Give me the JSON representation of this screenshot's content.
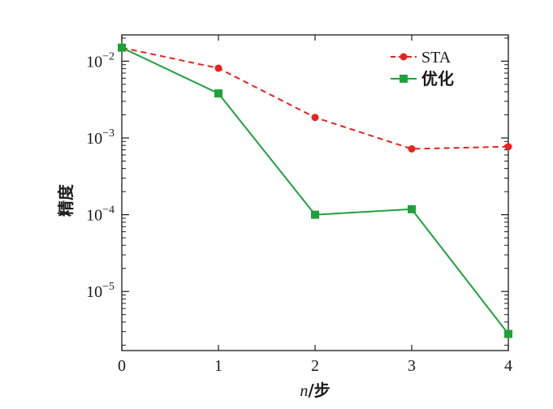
{
  "chart_data": {
    "type": "line",
    "x": [
      0,
      1,
      2,
      3,
      4
    ],
    "xlabel_italic": "n",
    "xlabel_rest": "/步",
    "ylabel": "精度",
    "yscale": "log",
    "xlim": [
      0,
      4
    ],
    "ylim": [
      1.7e-06,
      0.022
    ],
    "x_ticks": [
      "0",
      "1",
      "2",
      "3",
      "4"
    ],
    "y_ticks": [
      {
        "value": 0.01,
        "base": "10",
        "exp": "−2"
      },
      {
        "value": 0.001,
        "base": "10",
        "exp": "−3"
      },
      {
        "value": 0.0001,
        "base": "10",
        "exp": "−4"
      },
      {
        "value": 1e-05,
        "base": "10",
        "exp": "−5"
      }
    ],
    "legend_position": "top-right",
    "series": [
      {
        "name": "STA",
        "color": "#e8231f",
        "line_style": "dashed",
        "marker": "circle",
        "values": [
          0.015,
          0.0081,
          0.00185,
          0.00072,
          0.00077
        ]
      },
      {
        "name": "优化",
        "color": "#1fa13a",
        "line_style": "solid",
        "marker": "square",
        "values": [
          0.015,
          0.0038,
          0.0001,
          0.000118,
          2.8e-06
        ]
      }
    ]
  }
}
